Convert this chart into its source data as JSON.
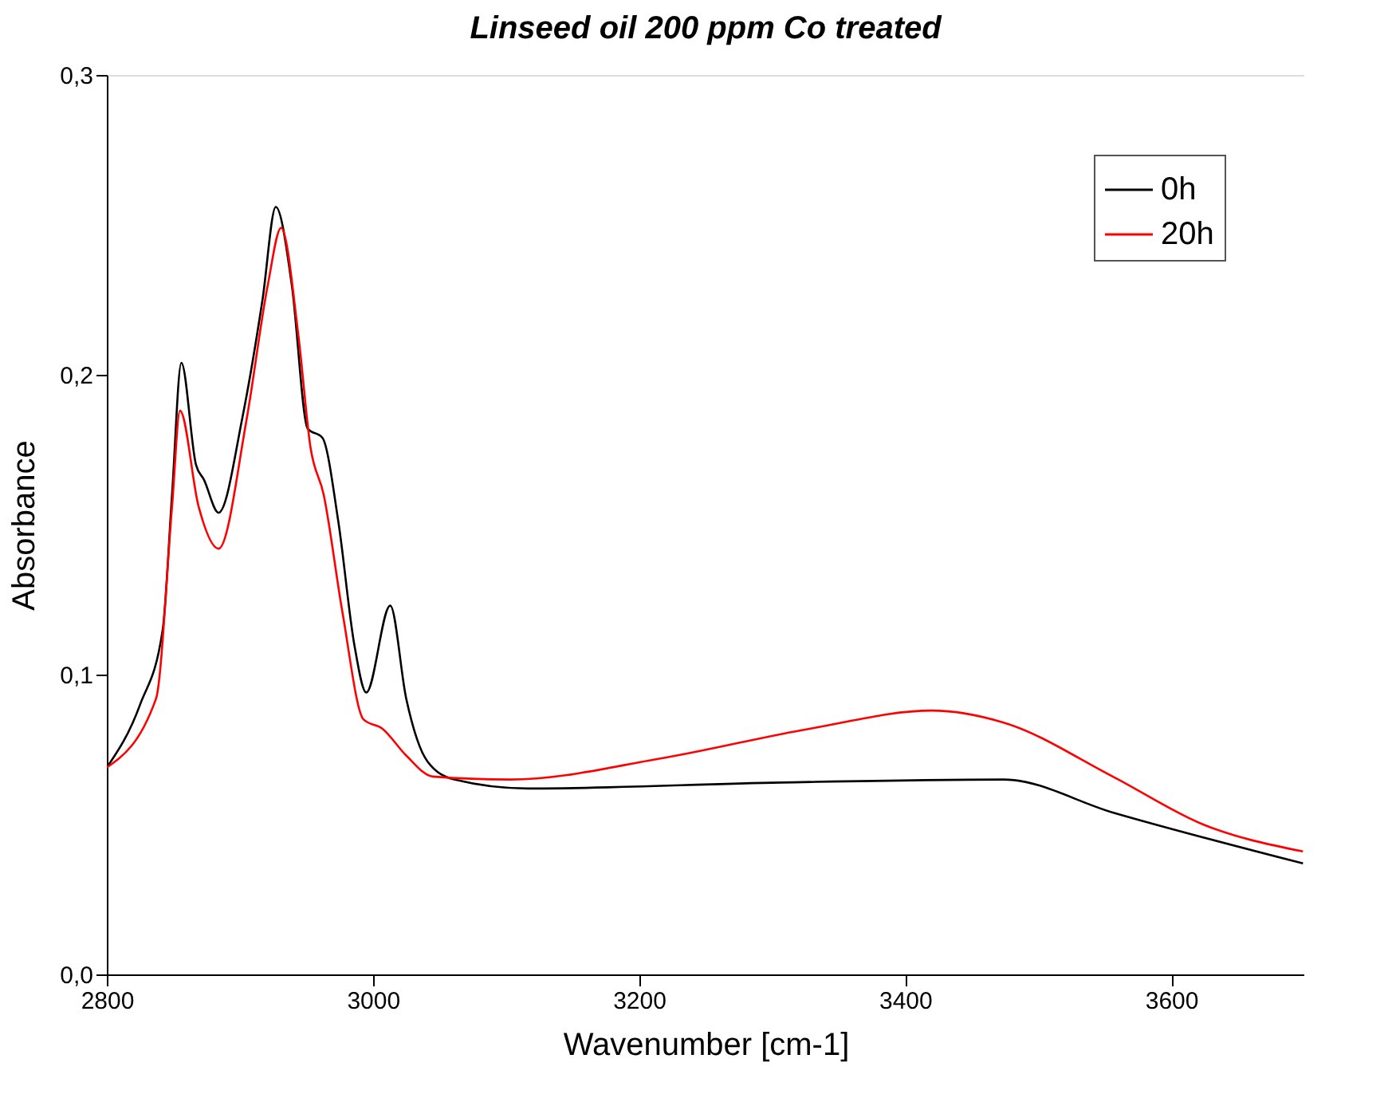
{
  "chart_data": {
    "type": "line",
    "title": "Linseed oil 200 ppm Co treated",
    "xlabel": "Wavenumber [cm-1]",
    "ylabel": "Absorbance",
    "xlim": [
      2800,
      3700
    ],
    "xticks": [
      2800,
      3000,
      3200,
      3400,
      3600
    ],
    "ylim": [
      0,
      0.3
    ],
    "yticks": [
      {
        "value": 0,
        "label": "0,0"
      },
      {
        "value": 0.1,
        "label": "0,1"
      },
      {
        "value": 0.2,
        "label": "0,2"
      },
      {
        "value": 0.3,
        "label": "0,3"
      }
    ],
    "grid": false,
    "legend": "top right",
    "marker": "none",
    "line_style": "solid",
    "series": [
      {
        "name": "0h",
        "color": "#000000",
        "x": [
          2800,
          2825,
          2842,
          2849,
          2856,
          2867,
          2873,
          2884,
          2902,
          2917,
          2927,
          2939,
          2951,
          2962,
          2974,
          2986,
          2995,
          3013,
          3025,
          3041,
          3061,
          3116,
          3307,
          3474,
          3556,
          3699
        ],
        "values": [
          0.069,
          0.09,
          0.115,
          0.16,
          0.204,
          0.17,
          0.165,
          0.154,
          0.186,
          0.225,
          0.256,
          0.23,
          0.182,
          0.179,
          0.151,
          0.11,
          0.094,
          0.123,
          0.092,
          0.071,
          0.065,
          0.062,
          0.064,
          0.065,
          0.054,
          0.037
        ]
      },
      {
        "name": "20h",
        "color": "#ff0000",
        "x": [
          2800,
          2837,
          2849,
          2855,
          2869,
          2884,
          2905,
          2921,
          2931,
          2944,
          2953,
          2963,
          2977,
          2993,
          3007,
          3025,
          3045,
          3103,
          3216,
          3329,
          3420,
          3474,
          3556,
          3624,
          3699
        ],
        "values": [
          0.069,
          0.092,
          0.156,
          0.188,
          0.156,
          0.142,
          0.185,
          0.23,
          0.249,
          0.213,
          0.176,
          0.16,
          0.121,
          0.085,
          0.082,
          0.073,
          0.066,
          0.065,
          0.072,
          0.082,
          0.088,
          0.084,
          0.066,
          0.05,
          0.041
        ]
      }
    ]
  }
}
